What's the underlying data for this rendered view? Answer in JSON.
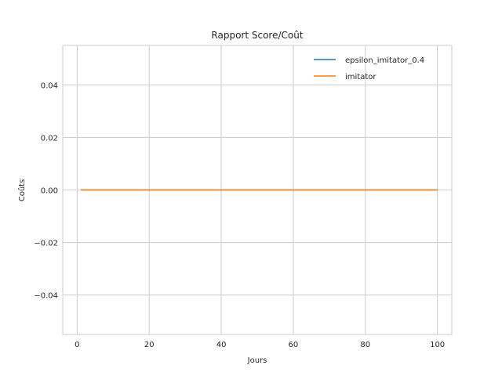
{
  "chart_data": {
    "type": "line",
    "title": "Rapport Score/Coût",
    "xlabel": "Jours",
    "ylabel": "Coûts",
    "xlim": [
      -4,
      104
    ],
    "ylim": [
      -0.055,
      0.055
    ],
    "xticks": [
      0,
      20,
      40,
      60,
      80,
      100
    ],
    "yticks": [
      -0.04,
      -0.02,
      0.0,
      0.02,
      0.04
    ],
    "xtick_labels": [
      "0",
      "20",
      "40",
      "60",
      "80",
      "100"
    ],
    "ytick_labels": [
      "−0.04",
      "−0.02",
      "0.00",
      "0.02",
      "0.04"
    ],
    "grid": true,
    "legend_position": "top-right",
    "x": [
      1,
      100
    ],
    "series": [
      {
        "name": "epsilon_imitator_0.4",
        "color": "#1f77b4",
        "values": [
          0,
          0
        ]
      },
      {
        "name": "imitator",
        "color": "#ff7f0e",
        "values": [
          0,
          0
        ]
      }
    ]
  }
}
